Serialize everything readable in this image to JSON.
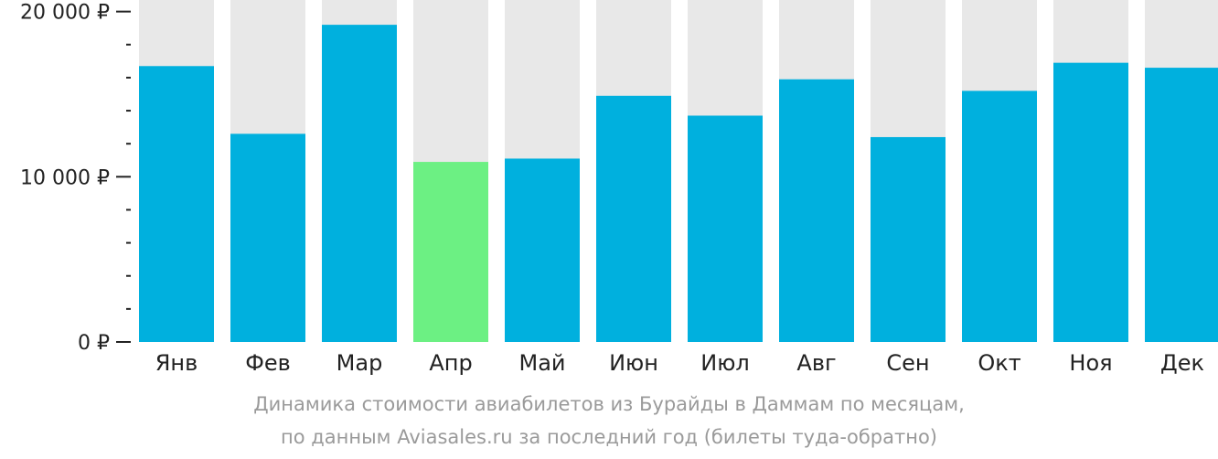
{
  "chart_data": {
    "type": "bar",
    "categories": [
      "Янв",
      "Фев",
      "Мар",
      "Апр",
      "Май",
      "Июн",
      "Июл",
      "Авг",
      "Сен",
      "Окт",
      "Ноя",
      "Дек"
    ],
    "values": [
      16700,
      12600,
      19200,
      10900,
      11100,
      14900,
      13700,
      15900,
      12400,
      15200,
      16900,
      16600
    ],
    "highlight_index": 3,
    "ylim": [
      0,
      20700
    ],
    "yticks": [
      {
        "value": 0,
        "label": "0 ₽"
      },
      {
        "value": 10000,
        "label": "10 000 ₽"
      },
      {
        "value": 20000,
        "label": "20 000 ₽"
      }
    ],
    "minor_tick_step": 2000,
    "colors": {
      "bar": "#00b0de",
      "highlight": "#6cf083",
      "background_bar": "#e8e8e8",
      "axis": "#222222"
    }
  },
  "caption": {
    "line1": "Динамика стоимости авиабилетов из Бурайды в Даммам по месяцам,",
    "line2": "по данным Aviasales.ru за последний год (билеты туда-обратно)"
  }
}
